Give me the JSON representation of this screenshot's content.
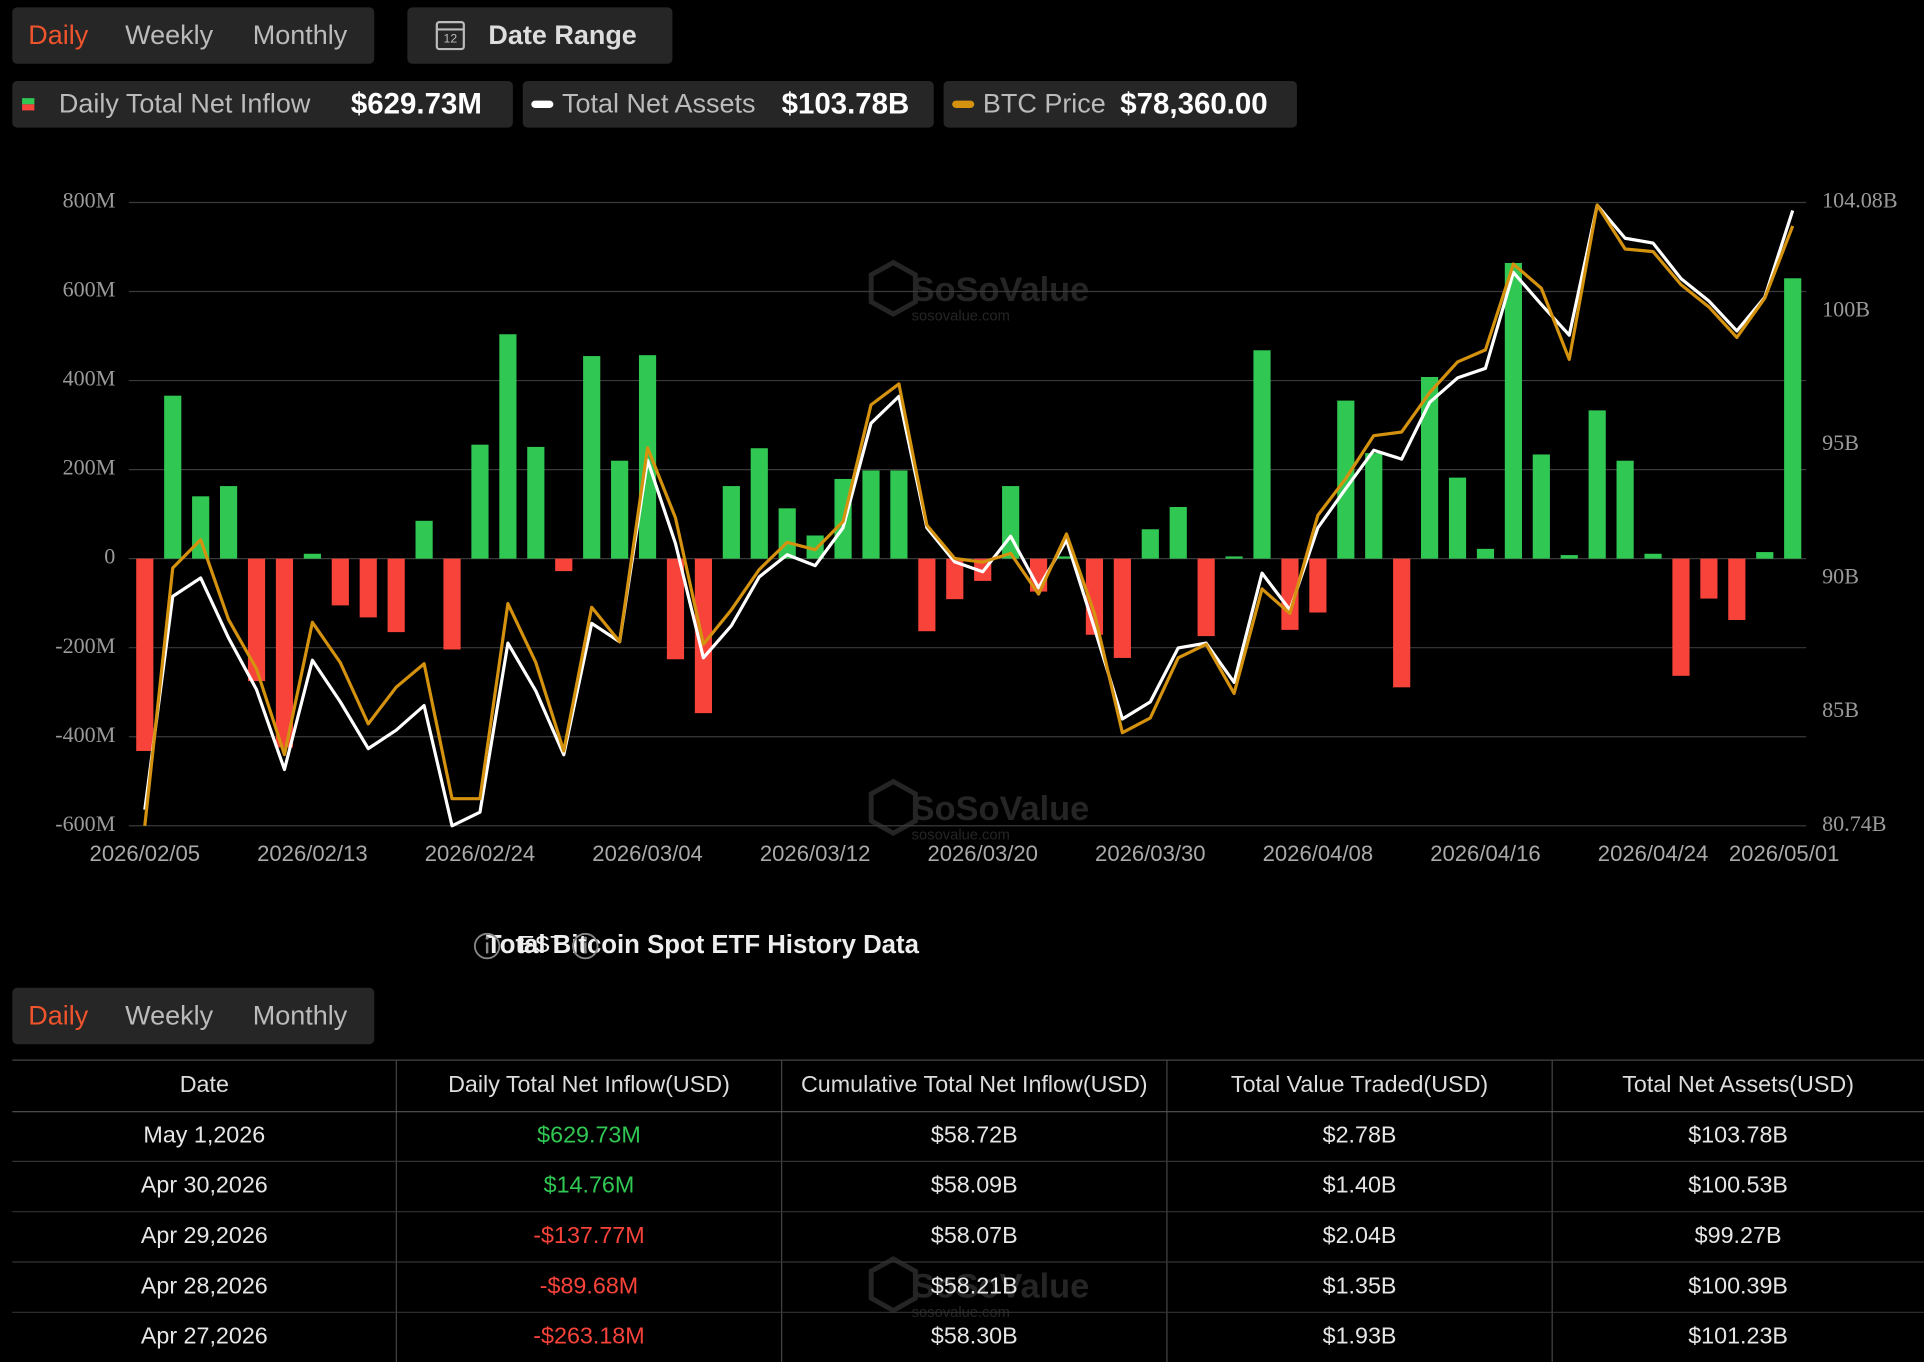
{
  "tabs": {
    "items": [
      "Daily",
      "Weekly",
      "Monthly"
    ],
    "active": 0
  },
  "date_range": "Date Range",
  "calendar_icon": "12",
  "legend_values": [
    "$629.73M",
    "$103.78B",
    "$78,360.00"
  ],
  "watermark": {
    "name": "SoSoValue",
    "url": "sosovalue.com"
  },
  "chart_data": {
    "type": "bar_line",
    "categories": [
      "2026/02/05",
      null,
      null,
      null,
      null,
      null,
      "2026/02/13",
      null,
      null,
      null,
      null,
      null,
      "2026/02/24",
      null,
      null,
      null,
      null,
      null,
      "2026/03/04",
      null,
      null,
      null,
      null,
      null,
      "2026/03/12",
      null,
      null,
      null,
      null,
      null,
      "2026/03/20",
      null,
      null,
      null,
      null,
      null,
      "2026/03/30",
      null,
      null,
      null,
      null,
      null,
      "2026/04/08",
      null,
      null,
      null,
      null,
      null,
      "2026/04/16",
      null,
      null,
      null,
      null,
      null,
      "2026/04/24",
      null,
      null,
      null,
      null,
      "2026/05/01"
    ],
    "series": [
      {
        "name": "Daily Total Net Inflow",
        "type": "bar",
        "positive_color": "#30c853",
        "negative_color": "#f7433a",
        "values": [
          -432,
          366,
          140,
          163,
          -275,
          -424,
          11,
          -105,
          -132,
          -165,
          85,
          -204,
          256,
          504,
          251,
          -28,
          455,
          220,
          457,
          -226,
          -347,
          163,
          248,
          113,
          52,
          179,
          198,
          198,
          -163,
          -91,
          -50,
          163,
          -74,
          5,
          -171,
          -223,
          66,
          116,
          -174,
          5,
          468,
          -160,
          -121,
          355,
          237,
          -289,
          408,
          182,
          22,
          664,
          234,
          8,
          333,
          220,
          11,
          -263.18,
          -89.68,
          -137.77,
          14.76,
          629.73
        ]
      },
      {
        "name": "Total Net Assets",
        "type": "line",
        "axis": "y2",
        "color": "#ffffff",
        "values": [
          81.34,
          89.33,
          90.02,
          87.77,
          85.84,
          82.85,
          86.94,
          85.38,
          83.63,
          84.32,
          85.24,
          80.74,
          81.25,
          87.58,
          85.79,
          83.4,
          88.32,
          87.63,
          94.43,
          91.31,
          87.03,
          88.23,
          90.06,
          90.89,
          90.48,
          91.9,
          95.81,
          96.82,
          91.9,
          90.62,
          90.25,
          91.58,
          89.65,
          91.44,
          88.14,
          84.74,
          85.38,
          87.4,
          87.58,
          86.11,
          90.2,
          88.82,
          91.9,
          93.37,
          94.8,
          94.47,
          96.59,
          97.51,
          97.87,
          101.46,
          100.26,
          99.11,
          103.98,
          102.74,
          102.56,
          101.23,
          100.39,
          99.27,
          100.53,
          103.78
        ]
      },
      {
        "name": "BTC Price",
        "type": "line",
        "axis": "y3",
        "color": "#d4920f",
        "values": [
          62000,
          69030,
          69800,
          67620,
          66280,
          63940,
          67550,
          66450,
          64780,
          65780,
          66420,
          62740,
          62740,
          68060,
          66450,
          64040,
          67960,
          67020,
          72310,
          70400,
          66950,
          67890,
          68990,
          69730,
          69530,
          70300,
          73480,
          74050,
          70200,
          69290,
          69190,
          69430,
          68320,
          69960,
          67790,
          64540,
          64940,
          66580,
          66950,
          65610,
          68460,
          67790,
          70470,
          71470,
          72640,
          72740,
          73810,
          74650,
          74980,
          77320,
          76660,
          74720,
          78930,
          77730,
          77660,
          76760,
          76150,
          75320,
          76390,
          78360
        ]
      }
    ],
    "ylim": [
      -600,
      800
    ],
    "yticks": [
      {
        "value": -600,
        "label": "-600M"
      },
      {
        "value": -400,
        "label": "-400M"
      },
      {
        "value": -200,
        "label": "-200M"
      },
      0,
      {
        "value": 200,
        "label": "200M"
      },
      {
        "value": 400,
        "label": "400M"
      },
      {
        "value": 600,
        "label": "600M"
      },
      {
        "value": 800,
        "label": "800M"
      }
    ],
    "y2lim": [
      80.74,
      104.08
    ],
    "y2ticks": [
      {
        "value": 80.74,
        "label": "80.74B"
      },
      {
        "value": 85,
        "label": "85B"
      },
      {
        "value": 90,
        "label": "90B"
      },
      {
        "value": 95,
        "label": "95B"
      },
      {
        "value": 100,
        "label": "100B"
      },
      {
        "value": 104.08,
        "label": "104.08B"
      }
    ],
    "y3lim": [
      62000,
      79000
    ],
    "grid": true
  },
  "history": {
    "title": "Total Bitcoin Spot ETF History Data",
    "timezone": "EST",
    "tabs": {
      "items": [
        "Daily",
        "Weekly",
        "Monthly"
      ],
      "active": 0
    },
    "table": {
      "columns": [
        "Date",
        "Daily Total Net Inflow(USD)",
        "Cumulative Total Net Inflow(USD)",
        "Total Value Traded(USD)",
        "Total Net Assets(USD)"
      ],
      "rows": [
        [
          "May 1,2026",
          "$629.73M",
          "$58.72B",
          "$2.78B",
          "$103.78B"
        ],
        [
          "Apr 30,2026",
          "$14.76M",
          "$58.09B",
          "$1.40B",
          "$100.53B"
        ],
        [
          "Apr 29,2026",
          "-$137.77M",
          "$58.07B",
          "$2.04B",
          "$99.27B"
        ],
        [
          "Apr 28,2026",
          "-$89.68M",
          "$58.21B",
          "$1.35B",
          "$100.39B"
        ],
        [
          "Apr 27,2026",
          "-$263.18M",
          "$58.30B",
          "$1.93B",
          "$101.23B"
        ]
      ]
    }
  }
}
